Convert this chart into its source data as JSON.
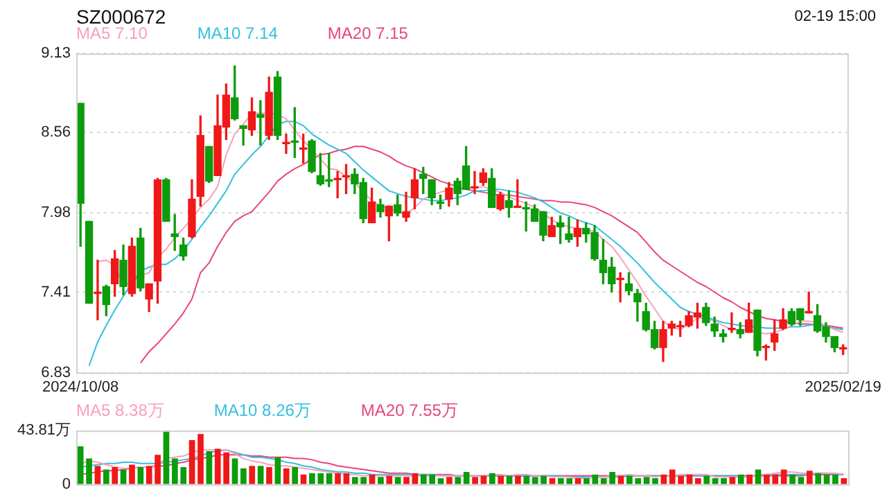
{
  "chart_data": [
    {
      "type": "candlestick",
      "title": "SZ000672",
      "annotations": [
        "02-19 15:00"
      ],
      "categories": [
        "2024/10/08",
        null,
        null,
        null,
        null,
        null,
        null,
        null,
        null,
        null,
        null,
        null,
        null,
        null,
        null,
        null,
        null,
        null,
        null,
        null,
        null,
        null,
        null,
        null,
        null,
        null,
        null,
        null,
        null,
        null,
        null,
        null,
        null,
        null,
        null,
        null,
        null,
        null,
        null,
        null,
        null,
        null,
        null,
        null,
        null,
        null,
        null,
        null,
        null,
        null,
        null,
        null,
        null,
        null,
        null,
        null,
        null,
        null,
        null,
        null,
        null,
        null,
        null,
        null,
        null,
        null,
        null,
        null,
        null,
        null,
        null,
        null,
        null,
        null,
        null,
        null,
        null,
        null,
        null,
        null,
        null,
        null,
        null,
        null,
        null,
        null,
        null,
        null,
        null,
        "2025/02/19"
      ],
      "ohlc": [
        [
          8.77,
          8.77,
          7.74,
          8.05
        ],
        [
          7.92,
          7.92,
          7.33,
          7.33
        ],
        [
          7.4,
          7.64,
          7.21,
          7.41
        ],
        [
          7.45,
          7.46,
          7.24,
          7.32
        ],
        [
          7.47,
          7.71,
          7.38,
          7.65
        ],
        [
          7.64,
          7.75,
          7.39,
          7.45
        ],
        [
          7.4,
          7.8,
          7.38,
          7.74
        ],
        [
          7.8,
          7.87,
          7.42,
          7.44
        ],
        [
          7.36,
          7.47,
          7.27,
          7.47
        ],
        [
          7.49,
          8.23,
          7.33,
          8.22
        ],
        [
          8.22,
          8.23,
          7.92,
          7.92
        ],
        [
          7.83,
          7.97,
          7.71,
          7.81
        ],
        [
          7.75,
          7.8,
          7.64,
          7.67
        ],
        [
          7.81,
          8.22,
          7.8,
          8.08
        ],
        [
          8.1,
          8.68,
          8.03,
          8.54
        ],
        [
          8.46,
          8.46,
          8.2,
          8.21
        ],
        [
          8.25,
          8.83,
          8.25,
          8.61
        ],
        [
          8.6,
          8.91,
          8.51,
          8.83
        ],
        [
          8.81,
          9.04,
          8.65,
          8.66
        ],
        [
          8.61,
          8.61,
          8.47,
          8.59
        ],
        [
          8.58,
          8.81,
          8.54,
          8.71
        ],
        [
          8.69,
          8.79,
          8.47,
          8.67
        ],
        [
          8.54,
          8.96,
          8.51,
          8.85
        ],
        [
          8.96,
          9.0,
          8.51,
          8.54
        ],
        [
          8.48,
          8.55,
          8.41,
          8.49
        ],
        [
          8.5,
          8.74,
          8.38,
          8.49
        ],
        [
          8.44,
          8.55,
          8.34,
          8.45
        ],
        [
          8.5,
          8.51,
          8.27,
          8.28
        ],
        [
          8.25,
          8.41,
          8.18,
          8.19
        ],
        [
          8.22,
          8.41,
          8.17,
          8.21
        ],
        [
          8.22,
          8.28,
          8.09,
          8.23
        ],
        [
          8.24,
          8.33,
          8.12,
          8.25
        ],
        [
          8.26,
          8.3,
          8.12,
          8.19
        ],
        [
          8.2,
          8.23,
          7.91,
          7.94
        ],
        [
          7.91,
          8.16,
          7.91,
          8.06
        ],
        [
          8.04,
          8.08,
          7.95,
          7.99
        ],
        [
          7.96,
          8.03,
          7.78,
          8.03
        ],
        [
          8.04,
          8.11,
          7.96,
          7.98
        ],
        [
          7.95,
          8.13,
          7.92,
          7.99
        ],
        [
          8.09,
          8.3,
          8.01,
          8.22
        ],
        [
          8.26,
          8.31,
          8.12,
          8.23
        ],
        [
          8.22,
          8.22,
          8.04,
          8.09
        ],
        [
          8.06,
          8.11,
          8.01,
          8.05
        ],
        [
          8.08,
          8.2,
          8.03,
          8.16
        ],
        [
          8.21,
          8.23,
          8.04,
          8.12
        ],
        [
          8.32,
          8.46,
          8.15,
          8.15
        ],
        [
          8.16,
          8.28,
          8.12,
          8.17
        ],
        [
          8.2,
          8.3,
          8.18,
          8.27
        ],
        [
          8.23,
          8.3,
          8.02,
          8.02
        ],
        [
          8.01,
          8.13,
          8.0,
          8.11
        ],
        [
          8.07,
          8.14,
          7.95,
          8.02
        ],
        [
          8.02,
          8.22,
          8.02,
          8.03
        ],
        [
          8.02,
          8.06,
          7.85,
          8.01
        ],
        [
          8.01,
          8.04,
          7.92,
          7.92
        ],
        [
          7.99,
          7.99,
          7.78,
          7.82
        ],
        [
          7.81,
          7.95,
          7.81,
          7.89
        ],
        [
          7.91,
          7.96,
          7.76,
          7.88
        ],
        [
          7.83,
          7.95,
          7.77,
          7.79
        ],
        [
          7.81,
          7.93,
          7.74,
          7.87
        ],
        [
          7.87,
          7.91,
          7.77,
          7.83
        ],
        [
          7.84,
          7.89,
          7.64,
          7.65
        ],
        [
          7.64,
          7.79,
          7.47,
          7.55
        ],
        [
          7.59,
          7.66,
          7.41,
          7.47
        ],
        [
          7.5,
          7.55,
          7.34,
          7.51
        ],
        [
          7.47,
          7.55,
          7.39,
          7.42
        ],
        [
          7.4,
          7.43,
          7.2,
          7.34
        ],
        [
          7.27,
          7.33,
          7.13,
          7.14
        ],
        [
          7.14,
          7.2,
          7.0,
          7.01
        ],
        [
          7.01,
          7.2,
          6.91,
          7.14
        ],
        [
          7.15,
          7.2,
          7.1,
          7.18
        ],
        [
          7.16,
          7.2,
          7.09,
          7.17
        ],
        [
          7.17,
          7.27,
          7.16,
          7.24
        ],
        [
          7.23,
          7.33,
          7.15,
          7.26
        ],
        [
          7.3,
          7.33,
          7.17,
          7.19
        ],
        [
          7.18,
          7.23,
          7.09,
          7.13
        ],
        [
          7.11,
          7.14,
          7.05,
          7.09
        ],
        [
          7.14,
          7.26,
          7.12,
          7.15
        ],
        [
          7.14,
          7.19,
          7.08,
          7.11
        ],
        [
          7.12,
          7.33,
          7.12,
          7.21
        ],
        [
          7.28,
          7.28,
          6.95,
          6.99
        ],
        [
          7.01,
          7.03,
          6.92,
          7.02
        ],
        [
          7.05,
          7.21,
          6.99,
          7.11
        ],
        [
          7.15,
          7.29,
          7.14,
          7.21
        ],
        [
          7.27,
          7.29,
          7.17,
          7.18
        ],
        [
          7.29,
          7.29,
          7.17,
          7.21
        ],
        [
          7.26,
          7.41,
          7.26,
          7.27
        ],
        [
          7.24,
          7.32,
          7.12,
          7.13
        ],
        [
          7.16,
          7.19,
          7.05,
          7.09
        ],
        [
          7.09,
          7.09,
          6.98,
          7.01
        ],
        [
          7.0,
          7.03,
          6.96,
          7.01
        ]
      ],
      "colors": [
        "#0c9c0c",
        "#0c9c0c",
        "#f01818",
        "#0c9c0c",
        "#f01818",
        "#0c9c0c",
        "#f01818",
        "#0c9c0c",
        "#f01818",
        "#f01818",
        "#0c9c0c",
        "#0c9c0c",
        "#0c9c0c",
        "#f01818",
        "#f01818",
        "#0c9c0c",
        "#f01818",
        "#f01818",
        "#0c9c0c",
        "#0c9c0c",
        "#f01818",
        "#0c9c0c",
        "#f01818",
        "#0c9c0c",
        "#f01818",
        "#0c9c0c",
        "#f01818",
        "#0c9c0c",
        "#0c9c0c",
        "#0c9c0c",
        "#f01818",
        "#f01818",
        "#0c9c0c",
        "#0c9c0c",
        "#f01818",
        "#0c9c0c",
        "#f01818",
        "#0c9c0c",
        "#f01818",
        "#f01818",
        "#0c9c0c",
        "#0c9c0c",
        "#0c9c0c",
        "#f01818",
        "#0c9c0c",
        "#0c9c0c",
        "#f01818",
        "#f01818",
        "#0c9c0c",
        "#f01818",
        "#0c9c0c",
        "#f01818",
        "#0c9c0c",
        "#0c9c0c",
        "#0c9c0c",
        "#f01818",
        "#0c9c0c",
        "#0c9c0c",
        "#f01818",
        "#0c9c0c",
        "#0c9c0c",
        "#0c9c0c",
        "#0c9c0c",
        "#f01818",
        "#0c9c0c",
        "#0c9c0c",
        "#0c9c0c",
        "#0c9c0c",
        "#f01818",
        "#f01818",
        "#f01818",
        "#f01818",
        "#f01818",
        "#0c9c0c",
        "#0c9c0c",
        "#0c9c0c",
        "#f01818",
        "#0c9c0c",
        "#f01818",
        "#0c9c0c",
        "#f01818",
        "#f01818",
        "#f01818",
        "#0c9c0c",
        "#0c9c0c",
        "#f01818",
        "#0c9c0c",
        "#0c9c0c",
        "#0c9c0c",
        "#f01818"
      ],
      "series": [
        {
          "name": "MA5 7.10",
          "type": "line",
          "color": "#f7a0b8",
          "values": [
            null,
            null,
            7.63,
            7.64,
            7.6,
            7.46,
            7.48,
            7.53,
            7.55,
            7.66,
            7.72,
            7.8,
            7.87,
            7.94,
            8.02,
            8.08,
            8.17,
            8.4,
            8.55,
            8.62,
            8.7,
            8.7,
            8.7,
            8.69,
            8.66,
            8.58,
            8.5,
            8.44,
            8.37,
            8.3,
            8.29,
            8.24,
            8.2,
            8.13,
            8.07,
            8.03,
            8.01,
            7.99,
            7.97,
            8.02,
            8.08,
            8.11,
            8.13,
            8.15,
            8.15,
            8.16,
            8.16,
            8.17,
            8.15,
            8.13,
            8.1,
            8.07,
            8.05,
            8.02,
            7.98,
            7.93,
            7.9,
            7.88,
            7.87,
            7.86,
            7.85,
            7.79,
            7.74,
            7.66,
            7.57,
            7.48,
            7.38,
            7.29,
            7.2,
            7.16,
            7.14,
            7.18,
            7.22,
            7.22,
            7.2,
            7.17,
            7.14,
            7.14,
            7.14,
            7.12,
            7.11,
            7.12,
            7.14,
            7.17,
            7.2,
            7.2,
            7.19,
            7.17,
            7.14,
            7.12
          ]
        },
        {
          "name": "MA10 7.14",
          "type": "line",
          "color": "#33c0e0",
          "values": [
            null,
            6.88,
            7.05,
            7.17,
            7.28,
            7.38,
            7.48,
            7.56,
            7.59,
            7.61,
            7.61,
            7.65,
            7.71,
            7.79,
            7.88,
            7.96,
            8.05,
            8.14,
            8.26,
            8.33,
            8.4,
            8.46,
            8.54,
            8.62,
            8.64,
            8.64,
            8.61,
            8.55,
            8.51,
            8.47,
            8.44,
            8.41,
            8.35,
            8.29,
            8.24,
            8.19,
            8.14,
            8.12,
            8.1,
            8.09,
            8.08,
            8.07,
            8.07,
            8.08,
            8.09,
            8.11,
            8.14,
            8.14,
            8.15,
            8.15,
            8.14,
            8.13,
            8.11,
            8.09,
            8.06,
            8.02,
            7.98,
            7.96,
            7.93,
            7.91,
            7.89,
            7.84,
            7.79,
            7.74,
            7.68,
            7.62,
            7.55,
            7.48,
            7.42,
            7.36,
            7.3,
            7.27,
            7.25,
            7.23,
            7.21,
            7.19,
            7.18,
            7.17,
            7.16,
            7.16,
            7.15,
            7.15,
            7.15,
            7.16,
            7.16,
            7.17,
            7.18,
            7.16,
            7.15,
            7.14
          ]
        },
        {
          "name": "MA20 7.15",
          "type": "line",
          "color": "#e8457c",
          "values": [
            null,
            null,
            null,
            null,
            null,
            null,
            null,
            6.9,
            6.98,
            7.04,
            7.11,
            7.18,
            7.26,
            7.36,
            7.55,
            7.62,
            7.74,
            7.84,
            7.92,
            7.96,
            7.99,
            8.06,
            8.13,
            8.21,
            8.26,
            8.3,
            8.33,
            8.37,
            8.4,
            8.41,
            8.43,
            8.44,
            8.46,
            8.46,
            8.44,
            8.42,
            8.39,
            8.35,
            8.32,
            8.3,
            8.27,
            8.24,
            8.21,
            8.19,
            8.17,
            8.15,
            8.14,
            8.13,
            8.12,
            8.11,
            8.11,
            8.1,
            8.09,
            8.08,
            8.07,
            8.07,
            8.06,
            8.06,
            8.05,
            8.04,
            8.02,
            7.99,
            7.96,
            7.92,
            7.88,
            7.84,
            7.77,
            7.7,
            7.64,
            7.6,
            7.56,
            7.52,
            7.48,
            7.45,
            7.41,
            7.37,
            7.34,
            7.3,
            7.27,
            7.24,
            7.22,
            7.21,
            7.2,
            7.19,
            7.18,
            7.18,
            7.17,
            7.17,
            7.16,
            7.15
          ]
        }
      ],
      "ylim": [
        6.83,
        9.13
      ],
      "yticks": [
        6.83,
        7.41,
        7.98,
        8.56,
        9.13
      ],
      "grid": "y",
      "legend": "top left",
      "marker": "none"
    },
    {
      "type": "bar",
      "categories": [
        null,
        null,
        null,
        null,
        null,
        null,
        null,
        null,
        null,
        null,
        null,
        null,
        null,
        null,
        null,
        null,
        null,
        null,
        null,
        null,
        null,
        null,
        null,
        null,
        null,
        null,
        null,
        null,
        null,
        null,
        null,
        null,
        null,
        null,
        null,
        null,
        null,
        null,
        null,
        null,
        null,
        null,
        null,
        null,
        null,
        null,
        null,
        null,
        null,
        null,
        null,
        null,
        null,
        null,
        null,
        null,
        null,
        null,
        null,
        null,
        null,
        null,
        null,
        null,
        null,
        null,
        null,
        null,
        null,
        null,
        null,
        null,
        null,
        null,
        null,
        null,
        null,
        null,
        null,
        null,
        null,
        null,
        null,
        null,
        null,
        null,
        null,
        null,
        null,
        null
      ],
      "series": [
        {
          "type": "bar",
          "colors": [
            "#0c9c0c",
            "#0c9c0c",
            "#f01818",
            "#0c9c0c",
            "#f01818",
            "#0c9c0c",
            "#f01818",
            "#0c9c0c",
            "#f01818",
            "#f01818",
            "#0c9c0c",
            "#0c9c0c",
            "#0c9c0c",
            "#f01818",
            "#f01818",
            "#0c9c0c",
            "#f01818",
            "#f01818",
            "#0c9c0c",
            "#0c9c0c",
            "#f01818",
            "#0c9c0c",
            "#f01818",
            "#0c9c0c",
            "#f01818",
            "#0c9c0c",
            "#f01818",
            "#0c9c0c",
            "#0c9c0c",
            "#0c9c0c",
            "#f01818",
            "#f01818",
            "#0c9c0c",
            "#0c9c0c",
            "#f01818",
            "#0c9c0c",
            "#f01818",
            "#0c9c0c",
            "#f01818",
            "#f01818",
            "#0c9c0c",
            "#0c9c0c",
            "#0c9c0c",
            "#f01818",
            "#0c9c0c",
            "#0c9c0c",
            "#f01818",
            "#f01818",
            "#0c9c0c",
            "#f01818",
            "#0c9c0c",
            "#f01818",
            "#0c9c0c",
            "#0c9c0c",
            "#0c9c0c",
            "#f01818",
            "#0c9c0c",
            "#0c9c0c",
            "#f01818",
            "#0c9c0c",
            "#0c9c0c",
            "#0c9c0c",
            "#0c9c0c",
            "#f01818",
            "#0c9c0c",
            "#0c9c0c",
            "#0c9c0c",
            "#0c9c0c",
            "#f01818",
            "#f01818",
            "#f01818",
            "#f01818",
            "#f01818",
            "#0c9c0c",
            "#0c9c0c",
            "#0c9c0c",
            "#f01818",
            "#0c9c0c",
            "#f01818",
            "#0c9c0c",
            "#f01818",
            "#f01818",
            "#f01818",
            "#0c9c0c",
            "#0c9c0c",
            "#f01818",
            "#0c9c0c",
            "#0c9c0c",
            "#0c9c0c",
            "#f01818"
          ],
          "values": [
            31,
            21,
            15,
            12,
            14,
            12,
            16,
            14,
            15,
            24,
            43.81,
            21,
            14,
            36,
            41,
            27,
            29,
            26,
            21,
            13,
            15,
            15,
            14,
            22,
            13,
            14,
            8,
            9,
            9,
            9,
            9,
            9,
            6,
            6,
            8,
            6,
            7,
            6,
            6,
            9,
            8,
            8,
            5,
            6,
            6,
            10,
            6,
            7,
            9,
            7,
            7,
            7,
            7,
            6,
            7,
            5,
            5,
            5,
            5,
            5,
            8,
            5,
            10,
            7,
            7,
            5,
            6,
            5,
            8,
            12,
            7,
            8,
            5,
            7,
            5,
            5,
            6,
            8,
            8,
            12,
            8,
            8,
            12,
            8,
            6,
            11,
            9,
            8,
            8,
            5
          ]
        },
        {
          "name": "MA5 8.38万",
          "type": "line",
          "color": "#f7a0b8",
          "values": [
            17,
            19,
            18,
            16,
            14,
            13,
            13,
            14,
            14,
            16,
            21,
            22,
            23,
            26,
            28,
            28,
            28,
            28,
            25,
            21,
            19,
            18,
            16,
            15,
            15,
            14,
            13,
            12,
            11,
            10,
            9,
            8,
            8,
            7,
            7,
            7,
            7,
            7,
            7,
            7,
            7,
            7,
            7,
            7,
            7,
            7,
            7,
            7,
            8,
            8,
            7,
            8,
            8,
            7,
            7,
            6,
            6,
            6,
            5,
            5,
            6,
            6,
            7,
            7,
            8,
            7,
            7,
            6,
            7,
            7,
            8,
            8,
            8,
            8,
            6,
            6,
            6,
            6,
            6,
            8,
            8,
            9,
            10,
            10,
            9,
            9,
            9,
            9,
            9,
            8
          ]
        },
        {
          "name": "MA10 8.26万",
          "type": "line",
          "color": "#33c0e0",
          "values": [
            14,
            15,
            16,
            17,
            17,
            18,
            18,
            17,
            17,
            17,
            18,
            19,
            20,
            21,
            23,
            26,
            27,
            28,
            26,
            24,
            22,
            22,
            21,
            20,
            18,
            17,
            15,
            14,
            12,
            11,
            10,
            10,
            9,
            9,
            8,
            8,
            8,
            8,
            8,
            8,
            8,
            8,
            7,
            7,
            7,
            7,
            7,
            7,
            7,
            7,
            7,
            7,
            7,
            7,
            7,
            7,
            7,
            6,
            6,
            6,
            6,
            6,
            6,
            6,
            7,
            7,
            7,
            7,
            7,
            7,
            7,
            7,
            7,
            7,
            7,
            7,
            7,
            7,
            7,
            7,
            8,
            8,
            8,
            8,
            8,
            8,
            9,
            9,
            8,
            8
          ]
        },
        {
          "name": "MA20 7.55万",
          "type": "line",
          "color": "#e8457c",
          "values": [
            8,
            9,
            10,
            11,
            11,
            12,
            13,
            14,
            14,
            15,
            15,
            17,
            18,
            20,
            21,
            22,
            24,
            24,
            24,
            24,
            23,
            23,
            22,
            22,
            22,
            21,
            21,
            20,
            18,
            17,
            15,
            14,
            13,
            12,
            11,
            10,
            9,
            9,
            9,
            8,
            8,
            8,
            8,
            8,
            7,
            7,
            7,
            7,
            7,
            7,
            7,
            7,
            7,
            7,
            7,
            7,
            7,
            7,
            7,
            7,
            7,
            7,
            7,
            7,
            7,
            7,
            7,
            7,
            7,
            7,
            7,
            7,
            7,
            7,
            7,
            7,
            7,
            7,
            7,
            7,
            7,
            7,
            7,
            7,
            7,
            8,
            8,
            8,
            8,
            8
          ]
        }
      ],
      "ylim": [
        0,
        43.81
      ],
      "yticks": [
        0,
        {
          "value": 43.81,
          "label": "43.81万"
        }
      ],
      "tick_labels": "y",
      "legend": "top left",
      "marker": "none"
    }
  ]
}
